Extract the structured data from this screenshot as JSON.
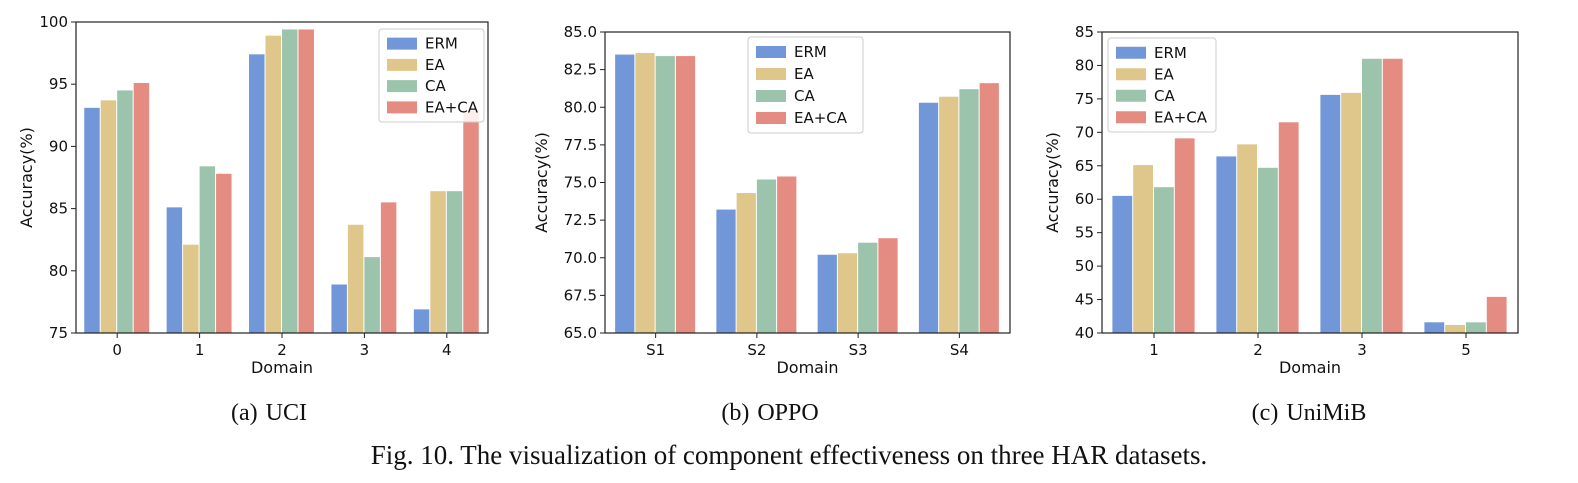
{
  "chart_data": [
    {
      "type": "bar",
      "categories": [
        "0",
        "1",
        "2",
        "3",
        "4"
      ],
      "xlabel": "Domain",
      "ylabel": "Accuracy(%)",
      "ylim": [
        75,
        100
      ],
      "yticks": [
        "75",
        "80",
        "85",
        "90",
        "95",
        "100"
      ],
      "legend_position": "top-right",
      "series": [
        {
          "name": "ERM",
          "color": "#7297d9",
          "values": [
            93.1,
            85.1,
            97.4,
            78.9,
            76.9
          ]
        },
        {
          "name": "EA",
          "color": "#dfc68a",
          "values": [
            93.7,
            82.1,
            98.9,
            83.7,
            86.4
          ]
        },
        {
          "name": "CA",
          "color": "#9cc4ad",
          "values": [
            94.5,
            88.4,
            99.4,
            81.1,
            86.4
          ]
        },
        {
          "name": "EA+CA",
          "color": "#e58c82",
          "values": [
            95.1,
            87.8,
            99.4,
            85.5,
            92.9
          ]
        }
      ]
    },
    {
      "type": "bar",
      "categories": [
        "S1",
        "S2",
        "S3",
        "S4"
      ],
      "xlabel": "Domain",
      "ylabel": "Accuracy(%)",
      "ylim": [
        65,
        85
      ],
      "yticks": [
        "65.0",
        "67.5",
        "70.0",
        "72.5",
        "75.0",
        "77.5",
        "80.0",
        "82.5",
        "85.0"
      ],
      "legend_position": "top-center",
      "series": [
        {
          "name": "ERM",
          "color": "#7297d9",
          "values": [
            83.5,
            73.2,
            70.2,
            80.3
          ]
        },
        {
          "name": "EA",
          "color": "#dfc68a",
          "values": [
            83.6,
            74.3,
            70.3,
            80.7
          ]
        },
        {
          "name": "CA",
          "color": "#9cc4ad",
          "values": [
            83.4,
            75.2,
            71.0,
            81.2
          ]
        },
        {
          "name": "EA+CA",
          "color": "#e58c82",
          "values": [
            83.4,
            75.4,
            71.3,
            81.6
          ]
        }
      ]
    },
    {
      "type": "bar",
      "categories": [
        "1",
        "2",
        "3",
        "5"
      ],
      "xlabel": "Domain",
      "ylabel": "Accuracy(%)",
      "ylim": [
        40,
        85
      ],
      "yticks": [
        "40",
        "45",
        "50",
        "55",
        "60",
        "65",
        "70",
        "75",
        "80",
        "85"
      ],
      "legend_position": "top-left",
      "series": [
        {
          "name": "ERM",
          "color": "#7297d9",
          "values": [
            60.5,
            66.4,
            75.6,
            41.6
          ]
        },
        {
          "name": "EA",
          "color": "#dfc68a",
          "values": [
            65.1,
            68.2,
            75.9,
            41.2
          ]
        },
        {
          "name": "CA",
          "color": "#9cc4ad",
          "values": [
            61.8,
            64.7,
            81.0,
            41.6
          ]
        },
        {
          "name": "EA+CA",
          "color": "#e58c82",
          "values": [
            69.1,
            71.5,
            81.0,
            45.4
          ]
        }
      ]
    }
  ],
  "subcaptions": [
    {
      "label": "(a)",
      "name": "UCI"
    },
    {
      "label": "(b)",
      "name": "OPPO"
    },
    {
      "label": "(c)",
      "name": "UniMiB"
    }
  ],
  "figure_caption": "Fig. 10.  The visualization of component effectiveness on three HAR datasets."
}
